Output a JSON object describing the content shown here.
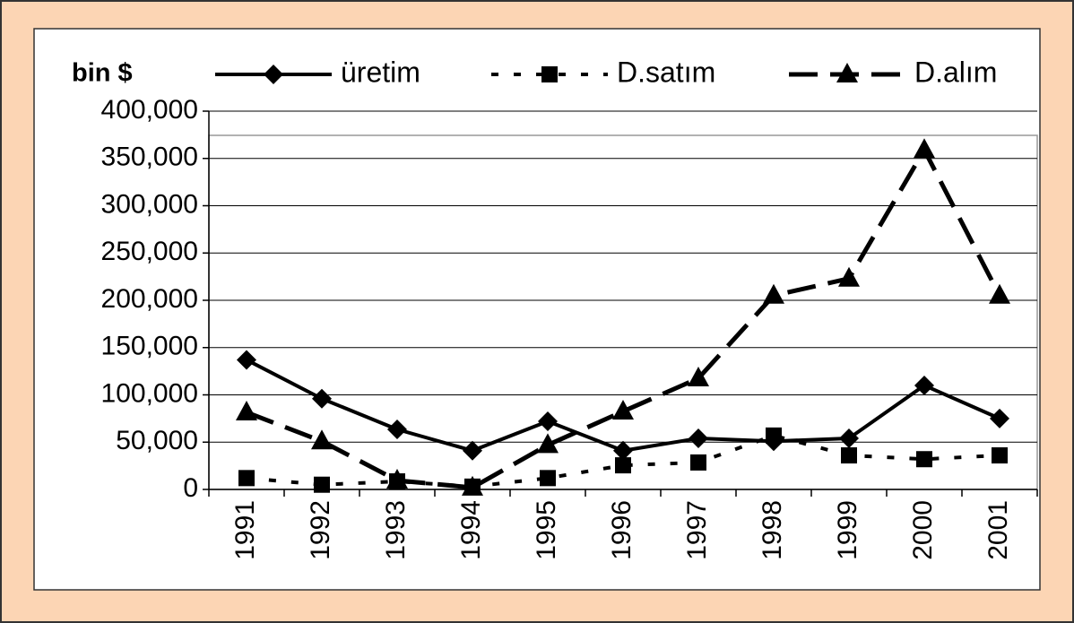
{
  "chart_data": {
    "type": "line",
    "y_axis_label": "bin $",
    "categories": [
      "1991",
      "1992",
      "1993",
      "1994",
      "1995",
      "1996",
      "1997",
      "1998",
      "1999",
      "2000",
      "2001"
    ],
    "series": [
      {
        "name": "üretim",
        "color": "#000000",
        "dash": "solid",
        "marker": "diamond",
        "values": [
          137000,
          96000,
          63500,
          41000,
          72000,
          41000,
          54000,
          51000,
          54000,
          110000,
          75000
        ]
      },
      {
        "name": "D.satım",
        "color": "#000000",
        "dash": "dotted",
        "marker": "square",
        "values": [
          12000,
          5000,
          8500,
          3000,
          12000,
          25500,
          28500,
          57000,
          36000,
          32000,
          36000
        ]
      },
      {
        "name": "D.alım",
        "color": "#000000",
        "dash": "dashed",
        "marker": "triangle",
        "values": [
          81500,
          51000,
          9500,
          2000,
          47000,
          82500,
          117500,
          205000,
          223000,
          359000,
          205000
        ]
      }
    ],
    "ylim": [
      0,
      400000
    ],
    "yticks": [
      0,
      {
        "value": 50000,
        "label": "50,000"
      },
      {
        "value": 100000,
        "label": "100,000"
      },
      {
        "value": 150000,
        "label": "150,000"
      },
      {
        "value": 200000,
        "label": "200,000"
      },
      {
        "value": 250000,
        "label": "250,000"
      },
      {
        "value": 300000,
        "label": "300,000"
      },
      {
        "value": 350000,
        "label": "350,000"
      },
      {
        "value": 400000,
        "label": "400,000"
      }
    ],
    "grid": true
  }
}
